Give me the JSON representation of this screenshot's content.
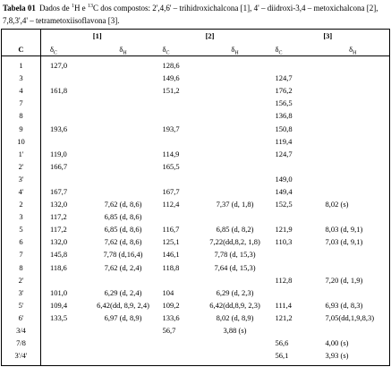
{
  "caption": {
    "label": "Tabela 01",
    "text_1": "Dados de ",
    "sup_1": "1",
    "text_2": "H e ",
    "sup_2": "13",
    "text_3": "C dos compostos: 2',4,6' – trihidroxichalcona [1], 4' – diidroxi-3,4 – metoxichalcona [2], 7,8,3',4' – tetrametoxiisoflavona [3]."
  },
  "table": {
    "header": [
      "C",
      "[1]",
      "[2]",
      "[3]"
    ],
    "subheader": [
      {
        "symbol": "δ",
        "sub": "C"
      },
      {
        "symbol": "δ",
        "sub": "H"
      },
      {
        "symbol": "δ",
        "sub": "C"
      },
      {
        "symbol": "δ",
        "sub": "H"
      },
      {
        "symbol": "δ",
        "sub": "C"
      },
      {
        "symbol": "δ",
        "sub": "H"
      }
    ],
    "rows": [
      [
        "1",
        "127,0",
        null,
        "128,6",
        null,
        null,
        null
      ],
      [
        "3",
        null,
        null,
        "149,6",
        null,
        "124,7",
        null
      ],
      [
        "4",
        "161,8",
        null,
        "151,2",
        null,
        "176,2",
        null
      ],
      [
        "7",
        null,
        null,
        null,
        null,
        "156,5",
        null
      ],
      [
        "8",
        null,
        null,
        null,
        null,
        "136,8",
        null
      ],
      [
        "9",
        "193,6",
        null,
        "193,7",
        null,
        "150,8",
        null
      ],
      [
        "10",
        null,
        null,
        null,
        null,
        "119,4",
        null
      ],
      [
        "1'",
        "119,0",
        null,
        "114,9",
        null,
        "124,7",
        null
      ],
      [
        "2'",
        "166,7",
        null,
        "165,5",
        null,
        null,
        null
      ],
      [
        "3'",
        null,
        null,
        null,
        null,
        "149,0",
        null
      ],
      [
        "4'",
        "167,7",
        null,
        "167,7",
        null,
        "149,4",
        null
      ],
      [
        "2",
        "132,0",
        "7,62 (d, 8,6)",
        "112,4",
        "7,37 (d, 1,8)",
        "152,5",
        "8,02 (s)"
      ],
      [
        "3",
        "117,2",
        "6,85 (d, 8,6)",
        null,
        null,
        null,
        null
      ],
      [
        "5",
        "117,2",
        "6,85 (d, 8,6)",
        "116,7",
        "6,85 (d, 8,2)",
        "121,9",
        "8,03 (d, 9,1)"
      ],
      [
        "6",
        "132,0",
        "7,62 (d, 8,6)",
        "125,1",
        "7,22(dd,8,2, 1,8)",
        "110,3",
        "7,03 (d, 9,1)"
      ],
      [
        "7",
        "145,8",
        "7,78 (d,16,4)",
        "146,1",
        "7,78 (d, 15,3)",
        null,
        null
      ],
      [
        "8",
        "118,6",
        "7,62 (d, 2,4)",
        "118,8",
        "7,64 (d, 15,3)",
        null,
        null
      ],
      [
        "2'",
        null,
        null,
        null,
        null,
        "112,8",
        "7,20 (d, 1,9)"
      ],
      [
        "3'",
        "101,0",
        "6,29 (d, 2,4)",
        "104",
        "6,29 (d, 2,3)",
        null,
        null
      ],
      [
        "5'",
        "109,4",
        "6,42(dd, 8,9, 2,4)",
        "109,2",
        "6,42(dd,8,9, 2,3)",
        "111,4",
        "6,93 (d, 8,3)"
      ],
      [
        "6'",
        "133,5",
        "6,97 (d, 8,9)",
        "133,6",
        "8,02 (d, 8,9)",
        "121,2",
        "7,05(dd,1,9,8,3)"
      ],
      [
        "3/4",
        null,
        null,
        "56,7",
        "3,88 (s)",
        null,
        null
      ],
      [
        "7/8",
        null,
        null,
        null,
        null,
        "56,6",
        "4,00 (s)"
      ],
      [
        "3'/4'",
        null,
        null,
        null,
        null,
        "56,1",
        "3,93 (s)"
      ]
    ]
  }
}
